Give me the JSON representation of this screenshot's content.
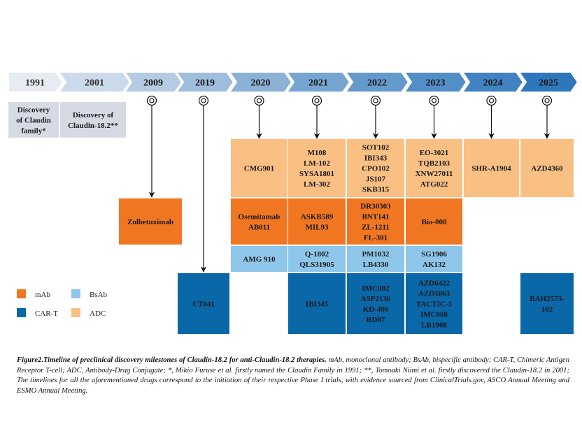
{
  "colors": {
    "mAb": "#F07622",
    "BsAb": "#8EC6EA",
    "ADC": "#F9BF83",
    "CAR-T": "#0A67A8",
    "discovery": "#D6DAE5",
    "arrow_light": "#E8ECF2",
    "arrow_dark": "#2E77BD"
  },
  "timeline": {
    "years": [
      "1991",
      "2001",
      "2009",
      "2019",
      "2020",
      "2021",
      "2022",
      "2023",
      "2024",
      "2025"
    ]
  },
  "discovery": [
    {
      "year": "1991",
      "lines": [
        "Discovery",
        "of Claudin",
        "family*"
      ]
    },
    {
      "year": "2001",
      "lines": [
        "Discovery of",
        "Claudin-18.2**"
      ]
    }
  ],
  "boxes": [
    {
      "id": "adc-2020",
      "type": "ADC",
      "year": "2020",
      "lines": [
        "CMG901"
      ]
    },
    {
      "id": "adc-2021",
      "type": "ADC",
      "year": "2021",
      "lines": [
        "M108",
        "LM-102",
        "SYSA1801",
        "LM-302"
      ]
    },
    {
      "id": "adc-2022",
      "type": "ADC",
      "year": "2022",
      "lines": [
        "SOT102",
        "IBI343",
        "CPO102",
        "JS107",
        "SKB315"
      ]
    },
    {
      "id": "adc-2023",
      "type": "ADC",
      "year": "2023",
      "lines": [
        "EO-3021",
        "TQB2103",
        "XNW27011",
        "ATG022"
      ]
    },
    {
      "id": "adc-2024",
      "type": "ADC",
      "year": "2024",
      "lines": [
        "SHR-A1904"
      ]
    },
    {
      "id": "adc-2025",
      "type": "ADC",
      "year": "2025",
      "lines": [
        "AZD4360"
      ]
    },
    {
      "id": "mab-2009",
      "type": "mAb",
      "year": "2009",
      "lines": [
        "Zolbetuximab"
      ]
    },
    {
      "id": "mab-2020",
      "type": "mAb",
      "year": "2020",
      "lines": [
        "Osemitamab",
        "AB011"
      ]
    },
    {
      "id": "mab-2021",
      "type": "mAb",
      "year": "2021",
      "lines": [
        "ASKB589",
        "MIL93"
      ]
    },
    {
      "id": "mab-2022",
      "type": "mAb",
      "year": "2022",
      "lines": [
        "DR30303",
        "BNT141",
        "ZL-1211",
        "FL-301"
      ]
    },
    {
      "id": "mab-2023",
      "type": "mAb",
      "year": "2023",
      "lines": [
        "Bio-008"
      ]
    },
    {
      "id": "bsab-2020",
      "type": "BsAb",
      "year": "2020",
      "lines": [
        "AMG 910"
      ]
    },
    {
      "id": "bsab-2021",
      "type": "BsAb",
      "year": "2021",
      "lines": [
        "Q-1802",
        "QLS31905"
      ]
    },
    {
      "id": "bsab-2022",
      "type": "BsAb",
      "year": "2022",
      "lines": [
        "PM1032",
        "LB4330"
      ]
    },
    {
      "id": "bsab-2023",
      "type": "BsAb",
      "year": "2023",
      "lines": [
        "SG1906",
        "AK132"
      ]
    },
    {
      "id": "cart-2019",
      "type": "CAR-T",
      "year": "2019",
      "lines": [
        "CT041"
      ]
    },
    {
      "id": "cart-2021",
      "type": "CAR-T",
      "year": "2021",
      "lines": [
        "IBI345"
      ]
    },
    {
      "id": "cart-2022",
      "type": "CAR-T",
      "year": "2022",
      "lines": [
        "IMC002",
        "ASP2138",
        "KD-496",
        "RD07"
      ]
    },
    {
      "id": "cart-2023",
      "type": "CAR-T",
      "year": "2023",
      "lines": [
        "AZD6422",
        "AZD5863",
        "TACTIC-3",
        "IMC008",
        "LB1908"
      ]
    },
    {
      "id": "cart-2025",
      "type": "CAR-T",
      "year": "2025",
      "lines": [
        "BAH2573-",
        "102"
      ]
    }
  ],
  "legend": [
    {
      "type": "mAb",
      "label": "mAb"
    },
    {
      "type": "BsAb",
      "label": "BsAb"
    },
    {
      "type": "CAR-T",
      "label": "CAR-T"
    },
    {
      "type": "ADC",
      "label": "ADC"
    }
  ],
  "caption": {
    "title": "Figure2.Timeline of preclinical discovery milestones of Claudin-18.2 for anti-Claudin-18.2 therapies.",
    "body": "mAb, monoclonal antibody; BsAb, bispecific antibody; CAR-T, Chimeric Antigen Receptor T-cell; ADC, Antibody-Drug Conjugate; *, Mikio Furuse et al. firstly named the Claudin Family in 1991; **, Tomoaki Niimi et al. firstly discovered the Claudin-18.2 in 2001; The timelines for all the aforementioned drugs correspond to the initiation of their respective Phase I trials, with evidence sourced from ClinicalTrials.gov, ASCO Annual Meeting and ESMO Annual Meeting."
  }
}
